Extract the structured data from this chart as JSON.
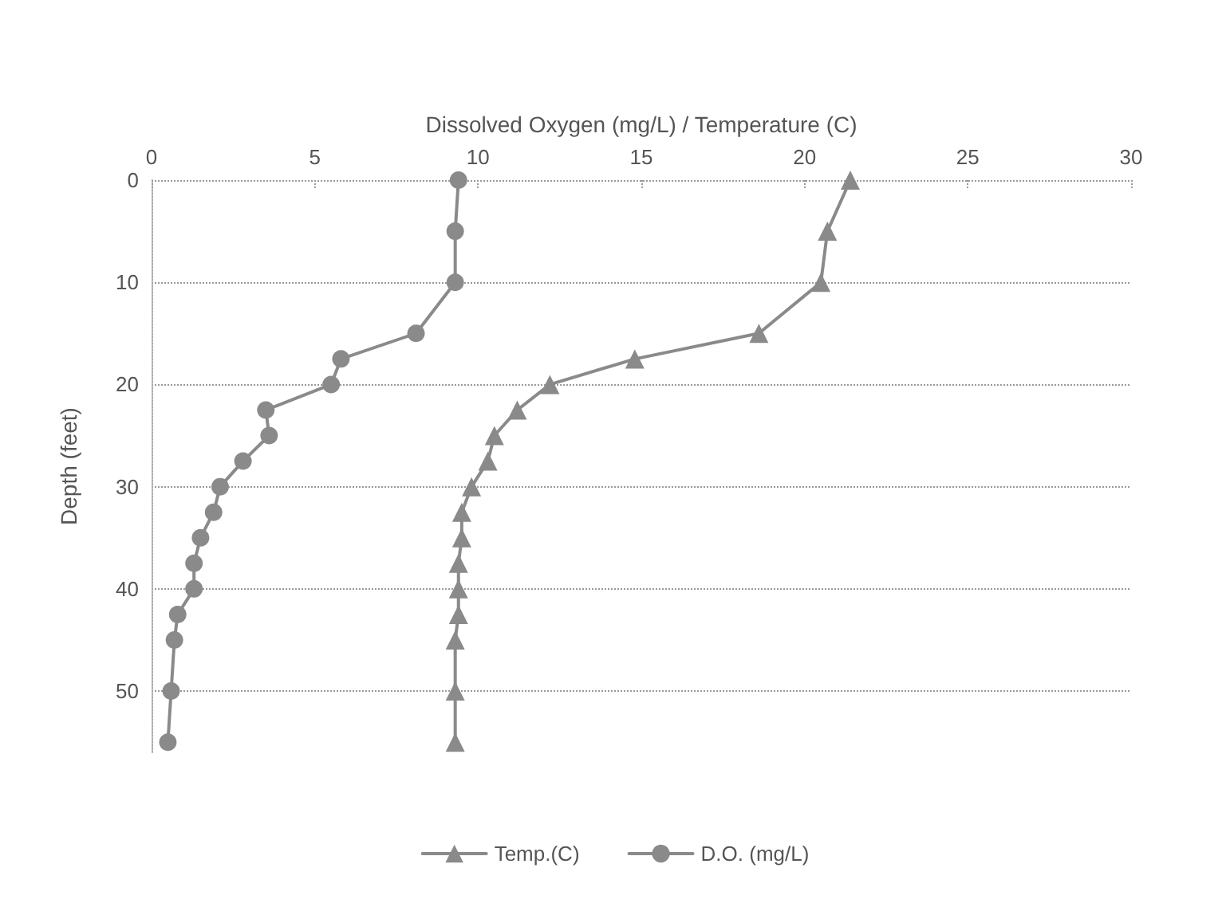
{
  "chart_data": {
    "type": "line",
    "xlabel": "Dissolved Oxygen (mg/L) / Temperature (C)",
    "ylabel": "Depth (feet)",
    "xlim": [
      0,
      30
    ],
    "xticks": [
      0,
      5,
      10,
      15,
      20,
      25,
      30
    ],
    "ylim": [
      56,
      0
    ],
    "yticks": [
      0,
      10,
      20,
      30,
      40,
      50
    ],
    "grid": "y",
    "legend": "bottom",
    "line_style": "solid",
    "series": [
      {
        "name": "Temp.(C)",
        "color": "#8a8a8a",
        "marker": "triangle",
        "x": [
          21.4,
          20.7,
          20.5,
          18.6,
          14.8,
          12.2,
          11.2,
          10.5,
          10.3,
          9.8,
          9.5,
          9.5,
          9.4,
          9.4,
          9.4,
          9.3,
          9.3,
          9.3
        ],
        "values": [
          0,
          5,
          10,
          15,
          17.5,
          20,
          22.5,
          25,
          27.5,
          30,
          32.5,
          35,
          37.5,
          40,
          42.5,
          45,
          50,
          55
        ]
      },
      {
        "name": "D.O. (mg/L)",
        "color": "#8a8a8a",
        "marker": "circle",
        "x": [
          9.4,
          9.3,
          9.3,
          8.1,
          5.8,
          5.5,
          3.5,
          3.6,
          2.8,
          2.1,
          1.9,
          1.5,
          1.3,
          1.3,
          0.8,
          0.7,
          0.6,
          0.5
        ],
        "values": [
          0,
          5,
          10,
          15,
          17.5,
          20,
          22.5,
          25,
          27.5,
          30,
          32.5,
          35,
          37.5,
          40,
          42.5,
          45,
          50,
          55
        ]
      }
    ]
  }
}
